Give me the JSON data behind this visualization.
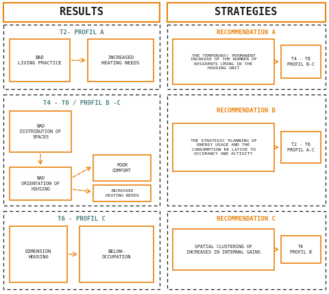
{
  "bg_color": "#ffffff",
  "border_color": "#1a1a1a",
  "orange_color": "#E8820C",
  "teal_color": "#4A8080",
  "box_bg": "#ffffff",
  "title_results": "RESULTS",
  "title_strategies": "STRATEGIES",
  "section_A_title": "T2- PROFIL A",
  "section_B_title": "T4 - T6 / PROFIL B -C",
  "section_C_title": "T6 - PROFIL C",
  "rec_A_title": "RECOMMENDATION A",
  "rec_B_title": "RECOMMENDATION B",
  "rec_C_title": "RECOMMENDATION C",
  "box_bad_living": "BAD\nLIVING PRACTICE",
  "box_increased_heating_A": "INCREASED\nHEATING NEEDS",
  "box_bad_distribution": "BAD\nDISTRIBUTION OF\nSPACES",
  "box_bad_orientation": "BAD\nORIENTATION OF\nHOUSING",
  "box_poor_comfort": "POOR\nCOMFORT",
  "box_increased_heating_B": "INCREASED\nHEATING NEEDS",
  "box_dimension": "DIMENSION\nHOUSING",
  "box_below": "BELOW-\nOCCUPATION",
  "rec_A_text": "THE TEMPORARY/ PERMANENT\nINCREASE OF THE NUMBER OF\nRESIDENTS LMING IN THE\nHOUSING UNIT",
  "rec_A_box": "T4 - T6\nPROFIL B-C",
  "rec_B_text": "THE STRATEGIC PLANNING OF\nENERGY USAGE AND THE\nCONSUMPTION RE LATIVE TO\nOCCUPANCY AND ACTIVITY",
  "rec_B_box": "T2 - T6\nPROFIL A-C",
  "rec_C_text": "SPATIAL CLUSTERING OF\nINCREASES IN INTERNAL GAINS",
  "rec_C_box": "T4\nPROFIL B"
}
